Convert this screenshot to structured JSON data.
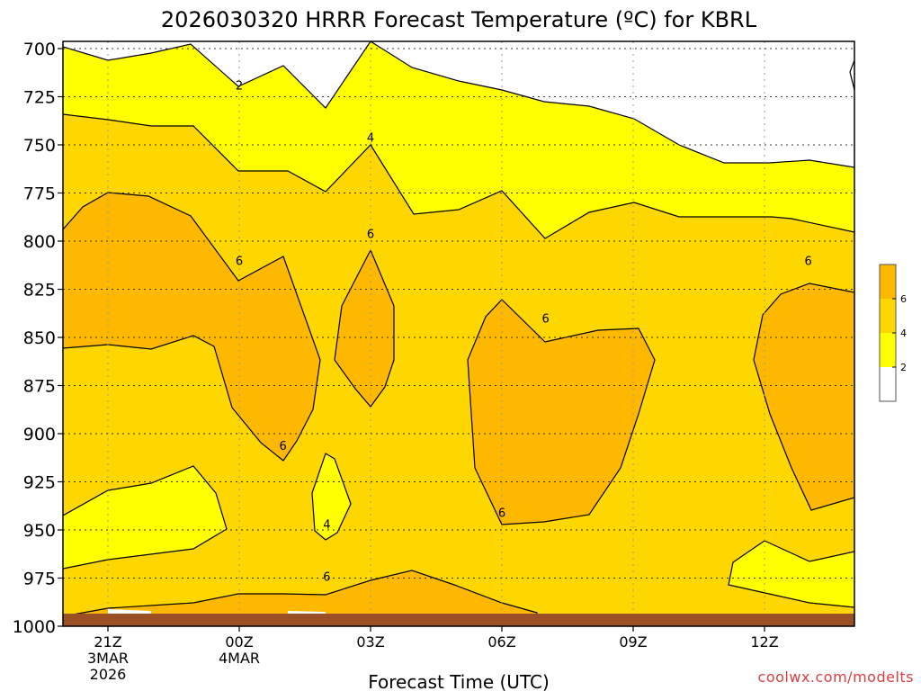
{
  "chart_data": {
    "type": "contour",
    "title": "2026030320 HRRR Forecast Temperature (ºC) for KBRL",
    "xlabel": "Forecast Time (UTC)",
    "ylabel": "",
    "x_ticks": [
      {
        "label": "21Z",
        "sub1": "3MAR",
        "sub2": "2026",
        "hour": 0
      },
      {
        "label": "00Z",
        "sub1": "4MAR",
        "sub2": "",
        "hour": 3
      },
      {
        "label": "03Z",
        "sub1": "",
        "sub2": "",
        "hour": 6
      },
      {
        "label": "06Z",
        "sub1": "",
        "sub2": "",
        "hour": 9
      },
      {
        "label": "09Z",
        "sub1": "",
        "sub2": "",
        "hour": 12
      },
      {
        "label": "12Z",
        "sub1": "",
        "sub2": "",
        "hour": 15
      }
    ],
    "y_ticks": [
      700,
      725,
      750,
      775,
      800,
      825,
      850,
      875,
      900,
      925,
      950,
      975,
      1000
    ],
    "y_tick_labels": [
      "700",
      "725",
      "750",
      "775",
      "800",
      "825",
      "850",
      "875",
      "900",
      "925",
      "950",
      "975",
      "1000"
    ],
    "xlim": [
      -1,
      17
    ],
    "ylim": [
      700,
      1000
    ],
    "contour_levels": [
      2,
      4,
      6
    ],
    "contour_labels": [
      {
        "text": "2",
        "x": 3.0,
        "y": 719
      },
      {
        "text": "4",
        "x": 6.0,
        "y": 746
      },
      {
        "text": "6",
        "x": 6.0,
        "y": 796
      },
      {
        "text": "6",
        "x": 3.0,
        "y": 810
      },
      {
        "text": "6",
        "x": 4.0,
        "y": 906
      },
      {
        "text": "4",
        "x": 5.0,
        "y": 947
      },
      {
        "text": "6",
        "x": 10.0,
        "y": 840
      },
      {
        "text": "6",
        "x": 9.0,
        "y": 941
      },
      {
        "text": "6",
        "x": 16.0,
        "y": 810
      },
      {
        "text": "6",
        "x": 5.0,
        "y": 974
      }
    ],
    "legend": {
      "colors": [
        "#ffffff",
        "#ffff00",
        "#ffd700",
        "#ffb800"
      ],
      "labels": [
        "2",
        "4",
        "6"
      ],
      "placement": "right"
    },
    "colors": {
      "white": "#ffffff",
      "yellow": "#ffff00",
      "gold": "#ffd700",
      "orange": "#ffb800",
      "ground": "#9a4f25"
    },
    "grid": true,
    "credit": "coolwx.com/modelts"
  }
}
